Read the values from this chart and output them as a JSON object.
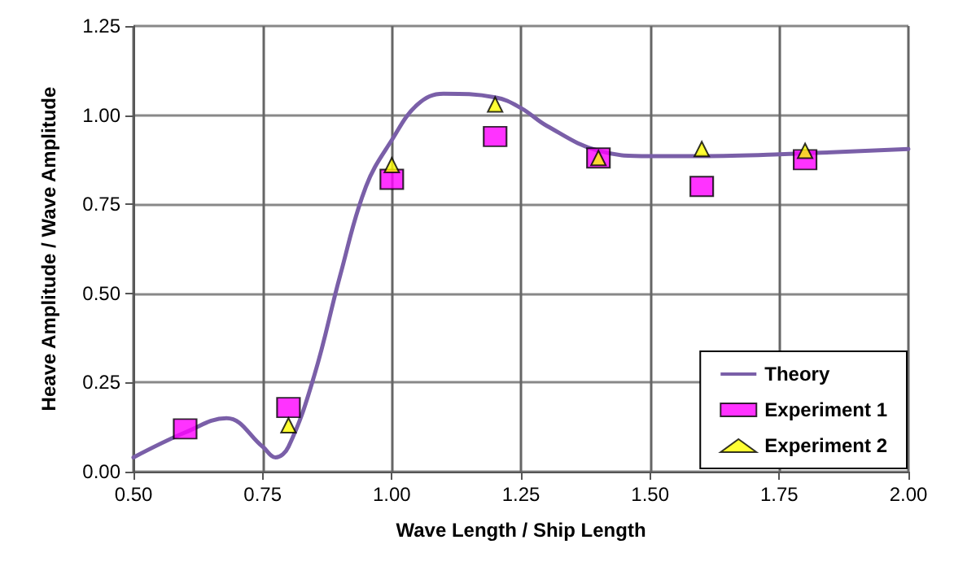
{
  "chart_data": {
    "type": "line",
    "xlabel": "Wave Length / Ship Length",
    "ylabel": "Heave Amplitude / Wave Amplitude",
    "xlim": [
      0.5,
      2.0
    ],
    "xticks": [
      {
        "value": 0.5,
        "label": "0.50"
      },
      {
        "value": 0.75,
        "label": "0.75"
      },
      {
        "value": 1.0,
        "label": "1.00"
      },
      {
        "value": 1.25,
        "label": "1.25"
      },
      {
        "value": 1.5,
        "label": "1.50"
      },
      {
        "value": 1.75,
        "label": "1.75"
      },
      {
        "value": 2.0,
        "label": "2.00"
      }
    ],
    "ylim": [
      0,
      1.25
    ],
    "yticks": [
      {
        "value": 0,
        "label": "0.00"
      },
      {
        "value": 0.25,
        "label": "0.25"
      },
      {
        "value": 0.5,
        "label": "0.50"
      },
      {
        "value": 0.75,
        "label": "0.75"
      },
      {
        "value": 1.0,
        "label": "1.00"
      },
      {
        "value": 1.25,
        "label": "1.25"
      }
    ],
    "grid": true,
    "legend": "bottom right",
    "series": [
      {
        "name": "Theory",
        "color": "#7a5fa8",
        "marker": "none",
        "x": [
          0.5,
          0.6,
          0.68,
          0.75,
          0.775,
          0.8,
          0.85,
          0.9,
          0.95,
          1.0,
          1.05,
          1.1,
          1.2,
          1.25,
          1.3,
          1.4,
          1.5,
          1.6,
          1.75,
          2.0
        ],
        "values": [
          0.04,
          0.11,
          0.15,
          0.07,
          0.04,
          0.07,
          0.27,
          0.55,
          0.8,
          0.93,
          1.03,
          1.06,
          1.05,
          1.02,
          0.97,
          0.9,
          0.885,
          0.885,
          0.89,
          0.905
        ]
      },
      {
        "name": "Experiment 1",
        "type": "scatter",
        "color": "#ff00ff",
        "marker": "square",
        "x": [
          0.6,
          0.8,
          1.0,
          1.2,
          1.4,
          1.6,
          1.8
        ],
        "values": [
          0.12,
          0.18,
          0.82,
          0.94,
          0.88,
          0.8,
          0.875
        ]
      },
      {
        "name": "Experiment 2",
        "type": "scatter",
        "color": "#ffff00",
        "marker": "triangle",
        "x": [
          0.8,
          1.0,
          1.2,
          1.4,
          1.6,
          1.8
        ],
        "values": [
          0.13,
          0.86,
          1.03,
          0.88,
          0.905,
          0.9
        ]
      }
    ]
  }
}
